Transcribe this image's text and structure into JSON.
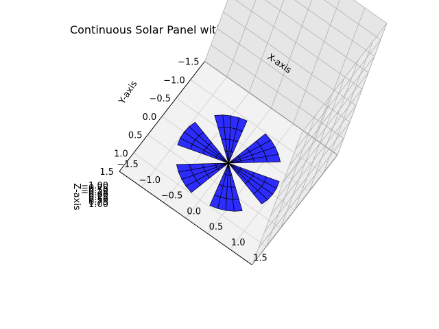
{
  "chart_data": {
    "type": "3d-surface",
    "title": "Continuous Solar Panel with Alternating Z-Axis Rotations",
    "xlabel": "X-axis",
    "ylabel": "Y-axis",
    "zlabel": "Z-axis",
    "xlim": [
      -1.5,
      1.5
    ],
    "ylim": [
      -1.5,
      1.5
    ],
    "zlim": [
      -1.0,
      1.0
    ],
    "x_ticks": [
      "−1.5",
      "−1.0",
      "−0.5",
      "0.0",
      "0.5",
      "1.0",
      "1.5"
    ],
    "y_ticks": [
      "−1.5",
      "−1.0",
      "−0.5",
      "0.0",
      "0.5",
      "1.0",
      "1.5"
    ],
    "z_ticks": [
      "−1.00",
      "−0.75",
      "−0.50",
      "−0.25",
      "0.00",
      "0.25",
      "0.50",
      "0.75",
      "1.00"
    ],
    "grid": true,
    "face_color": "#0000ff",
    "edge_color": "#000000",
    "blades": 6,
    "blade_angles_deg": [
      0,
      60,
      120,
      180,
      240,
      300
    ],
    "blade_half_width_deg": 18,
    "blade_radius": 1.0,
    "blade_radial_segments": 4,
    "blade_angular_segments": 4
  }
}
